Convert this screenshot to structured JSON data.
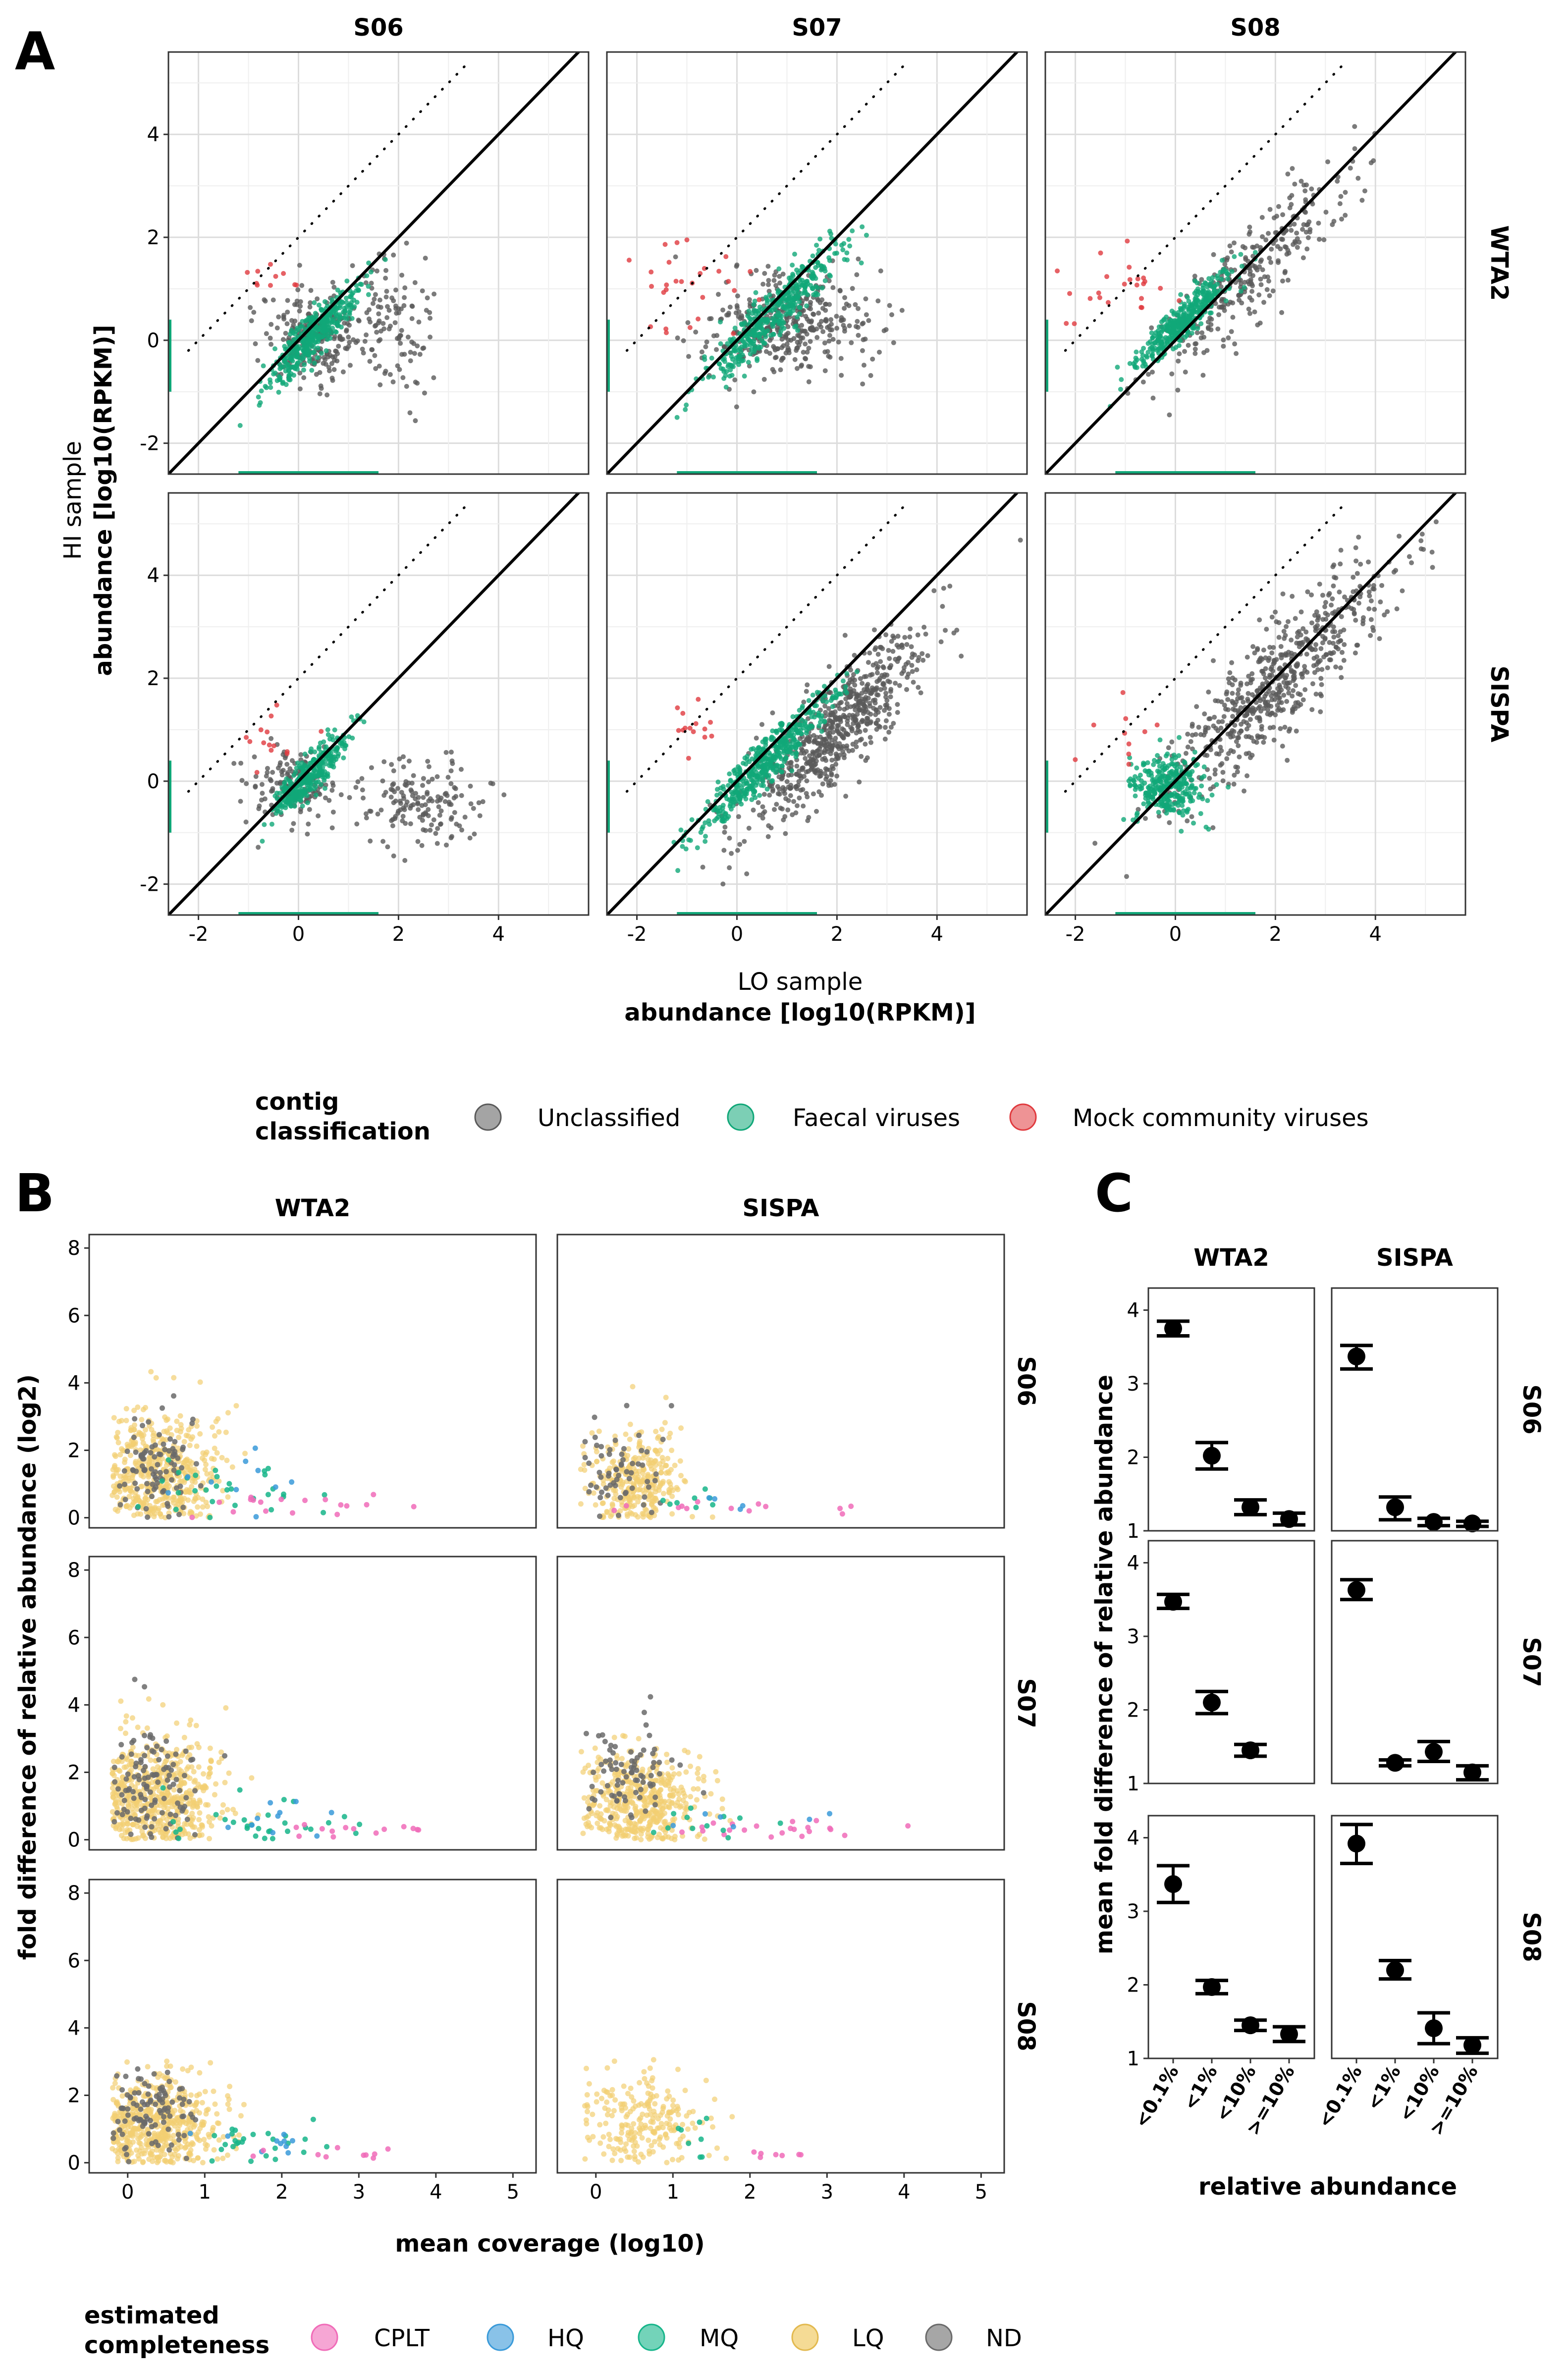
{
  "panelA": {
    "letter": "A",
    "columns": [
      "S06",
      "S07",
      "S08"
    ],
    "rows": [
      "WTA2",
      "SISPA"
    ],
    "xlabel_line1": "LO sample",
    "xlabel_line2": "abundance [log10(RPKM)]",
    "ylabel_line1": "HI sample",
    "ylabel_line2": "abundance [log10(RPKM)]",
    "xticks": [
      "-2",
      "0",
      "2",
      "4"
    ],
    "yticks": [
      "-2",
      "0",
      "2",
      "4"
    ],
    "legend": {
      "title_line1": "contig",
      "title_line2": "classification",
      "items": [
        {
          "label": "Unclassified",
          "color": "#5a5a5a"
        },
        {
          "label": "Faecal viruses",
          "color": "#10a778"
        },
        {
          "label": "Mock community viruses",
          "color": "#e03a3e"
        }
      ]
    }
  },
  "panelB": {
    "letter": "B",
    "columns": [
      "WTA2",
      "SISPA"
    ],
    "rows": [
      "S06",
      "S07",
      "S08"
    ],
    "xlabel": "mean coverage (log10)",
    "ylabel": "fold difference of relative abundance (log2)",
    "xticks": [
      "0",
      "1",
      "2",
      "3",
      "4",
      "5"
    ],
    "yticks": [
      "0",
      "2",
      "4",
      "6",
      "8"
    ],
    "legend": {
      "title_line1": "estimated",
      "title_line2": "completeness",
      "items": [
        {
          "label": "CPLT",
          "color": "#f06bb8"
        },
        {
          "label": "HQ",
          "color": "#3a9ad9"
        },
        {
          "label": "MQ",
          "color": "#16b58a"
        },
        {
          "label": "LQ",
          "color": "#f2cf72"
        },
        {
          "label": "ND",
          "color": "#6a6a6a"
        }
      ]
    }
  },
  "panelC": {
    "letter": "C",
    "columns": [
      "WTA2",
      "SISPA"
    ],
    "rows": [
      "S06",
      "S07",
      "S08"
    ],
    "xlabel": "relative abundance",
    "ylabel": "mean fold difference of relative abundance",
    "yticks": [
      "1",
      "2",
      "3",
      "4"
    ]
  },
  "chart_data": [
    {
      "type": "scatter",
      "panel": "A",
      "xlabel": "LO sample abundance [log10(RPKM)]",
      "ylabel": "HI sample abundance [log10(RPKM)]",
      "xlim": [
        -2.6,
        5.8
      ],
      "ylim": [
        -2.6,
        5.6
      ],
      "series": [
        "Unclassified",
        "Faecal viruses",
        "Mock community viruses"
      ],
      "reference_lines": [
        {
          "style": "solid",
          "intercept": 0,
          "slope": 1
        },
        {
          "style": "dotted",
          "intercept": 2,
          "slope": 1
        }
      ],
      "facets": [
        {
          "col": "S06",
          "row": "WTA2",
          "clouds": [
            {
              "series": "Unclassified",
              "cx": 0.3,
              "cy": 0.1,
              "sx": 0.5,
              "sy": 0.45,
              "n": 220
            },
            {
              "series": "Unclassified",
              "cx": 1.8,
              "cy": 0.3,
              "sx": 0.45,
              "sy": 0.7,
              "n": 120
            },
            {
              "series": "Faecal viruses",
              "cx": 0.3,
              "cy": 0.1,
              "sx": 0.45,
              "sy": 0.4,
              "n": 380,
              "diag": true
            },
            {
              "series": "Mock community viruses",
              "cx": -0.6,
              "cy": 1.2,
              "sx": 0.35,
              "sy": 0.15,
              "n": 10
            }
          ]
        },
        {
          "col": "S07",
          "row": "WTA2",
          "clouds": [
            {
              "series": "Unclassified",
              "cx": 1.0,
              "cy": 0.3,
              "sx": 0.8,
              "sy": 0.5,
              "n": 380
            },
            {
              "series": "Faecal viruses",
              "cx": 0.7,
              "cy": 0.5,
              "sx": 0.7,
              "sy": 0.45,
              "n": 420,
              "diag": true
            },
            {
              "series": "Mock community viruses",
              "cx": -1.0,
              "cy": 0.9,
              "sx": 0.5,
              "sy": 0.5,
              "n": 28
            }
          ]
        },
        {
          "col": "S08",
          "row": "WTA2",
          "clouds": [
            {
              "series": "Unclassified",
              "cx": 1.5,
              "cy": 1.3,
              "sx": 1.0,
              "sy": 0.9,
              "n": 300,
              "diag": true
            },
            {
              "series": "Faecal viruses",
              "cx": 0.2,
              "cy": 0.4,
              "sx": 0.5,
              "sy": 0.35,
              "n": 380,
              "diag": true
            },
            {
              "series": "Mock community viruses",
              "cx": -1.2,
              "cy": 1.0,
              "sx": 0.6,
              "sy": 0.5,
              "n": 24
            }
          ]
        },
        {
          "col": "S06",
          "row": "SISPA",
          "clouds": [
            {
              "series": "Unclassified",
              "cx": 2.4,
              "cy": -0.4,
              "sx": 0.7,
              "sy": 0.4,
              "n": 160
            },
            {
              "series": "Unclassified",
              "cx": 0.0,
              "cy": 0.0,
              "sx": 0.4,
              "sy": 0.4,
              "n": 140
            },
            {
              "series": "Faecal viruses",
              "cx": 0.2,
              "cy": 0.1,
              "sx": 0.4,
              "sy": 0.35,
              "n": 330,
              "diag": true
            },
            {
              "series": "Mock community viruses",
              "cx": -0.8,
              "cy": 0.8,
              "sx": 0.4,
              "sy": 0.35,
              "n": 14
            }
          ]
        },
        {
          "col": "S07",
          "row": "SISPA",
          "clouds": [
            {
              "series": "Unclassified",
              "cx": 2.0,
              "cy": 1.0,
              "sx": 0.9,
              "sy": 0.9,
              "n": 650,
              "diag": true
            },
            {
              "series": "Faecal viruses",
              "cx": 0.6,
              "cy": 0.4,
              "sx": 0.7,
              "sy": 0.4,
              "n": 480,
              "diag": true
            },
            {
              "series": "Mock community viruses",
              "cx": -0.8,
              "cy": 1.2,
              "sx": 0.35,
              "sy": 0.25,
              "n": 14
            }
          ]
        },
        {
          "col": "S08",
          "row": "SISPA",
          "clouds": [
            {
              "series": "Unclassified",
              "cx": 2.0,
              "cy": 1.9,
              "sx": 1.1,
              "sy": 1.0,
              "n": 600,
              "diag": true
            },
            {
              "series": "Faecal viruses",
              "cx": -0.1,
              "cy": -0.1,
              "sx": 0.35,
              "sy": 0.3,
              "n": 300
            },
            {
              "series": "Mock community viruses",
              "cx": -1.0,
              "cy": 0.9,
              "sx": 0.45,
              "sy": 0.4,
              "n": 10
            }
          ]
        }
      ]
    },
    {
      "type": "scatter",
      "panel": "B",
      "xlabel": "mean coverage (log10)",
      "ylabel": "fold difference of relative abundance (log2)",
      "xlim": [
        -0.5,
        5.3
      ],
      "ylim": [
        -0.3,
        8.4
      ],
      "series": [
        "CPLT",
        "HQ",
        "MQ",
        "LQ",
        "ND"
      ],
      "facets": [
        {
          "col": "WTA2",
          "row": "S06",
          "clouds": [
            {
              "series": "LQ",
              "cx": 0.4,
              "cy": 1.3,
              "sx": 0.4,
              "sy": 0.9,
              "n": 500
            },
            {
              "series": "ND",
              "cx": 0.3,
              "cy": 1.5,
              "sx": 0.3,
              "sy": 0.7,
              "n": 90
            },
            {
              "series": "MQ",
              "cx": 1.4,
              "cy": 0.8,
              "sx": 0.5,
              "sy": 0.5,
              "n": 30
            },
            {
              "series": "HQ",
              "cx": 1.5,
              "cy": 1.0,
              "sx": 0.4,
              "sy": 0.5,
              "n": 10
            },
            {
              "series": "CPLT",
              "cx": 2.4,
              "cy": 0.4,
              "sx": 0.7,
              "sy": 0.2,
              "n": 18
            }
          ]
        },
        {
          "col": "SISPA",
          "row": "S06",
          "clouds": [
            {
              "series": "LQ",
              "cx": 0.5,
              "cy": 1.0,
              "sx": 0.3,
              "sy": 0.8,
              "n": 320
            },
            {
              "series": "ND",
              "cx": 0.3,
              "cy": 1.5,
              "sx": 0.25,
              "sy": 0.7,
              "n": 60
            },
            {
              "series": "CPLT",
              "cx": 1.8,
              "cy": 0.3,
              "sx": 1.2,
              "sy": 0.1,
              "n": 14
            },
            {
              "series": "MQ",
              "cx": 1.3,
              "cy": 0.3,
              "sx": 0.3,
              "sy": 0.2,
              "n": 8
            },
            {
              "series": "HQ",
              "cx": 1.6,
              "cy": 0.4,
              "sx": 0.3,
              "sy": 0.2,
              "n": 4
            }
          ]
        },
        {
          "col": "WTA2",
          "row": "S07",
          "clouds": [
            {
              "series": "LQ",
              "cx": 0.4,
              "cy": 1.3,
              "sx": 0.4,
              "sy": 1.0,
              "n": 560
            },
            {
              "series": "ND",
              "cx": 0.3,
              "cy": 1.8,
              "sx": 0.3,
              "sy": 0.9,
              "n": 110
            },
            {
              "series": "MQ",
              "cx": 1.6,
              "cy": 0.5,
              "sx": 0.6,
              "sy": 0.4,
              "n": 30
            },
            {
              "series": "HQ",
              "cx": 1.8,
              "cy": 0.6,
              "sx": 0.5,
              "sy": 0.3,
              "n": 10
            },
            {
              "series": "CPLT",
              "cx": 2.9,
              "cy": 0.3,
              "sx": 0.5,
              "sy": 0.1,
              "n": 14
            }
          ]
        },
        {
          "col": "SISPA",
          "row": "S07",
          "clouds": [
            {
              "series": "LQ",
              "cx": 0.6,
              "cy": 1.1,
              "sx": 0.4,
              "sy": 0.8,
              "n": 480
            },
            {
              "series": "ND",
              "cx": 0.4,
              "cy": 1.8,
              "sx": 0.3,
              "sy": 0.8,
              "n": 80
            },
            {
              "series": "CPLT",
              "cx": 2.3,
              "cy": 0.3,
              "sx": 0.6,
              "sy": 0.1,
              "n": 22
            },
            {
              "series": "MQ",
              "cx": 1.4,
              "cy": 0.5,
              "sx": 0.5,
              "sy": 0.3,
              "n": 12
            },
            {
              "series": "HQ",
              "cx": 1.8,
              "cy": 0.5,
              "sx": 0.6,
              "sy": 0.3,
              "n": 6
            }
          ]
        },
        {
          "col": "WTA2",
          "row": "S08",
          "clouds": [
            {
              "series": "LQ",
              "cx": 0.4,
              "cy": 1.1,
              "sx": 0.4,
              "sy": 0.8,
              "n": 520
            },
            {
              "series": "ND",
              "cx": 0.3,
              "cy": 1.6,
              "sx": 0.3,
              "sy": 0.7,
              "n": 100
            },
            {
              "series": "MQ",
              "cx": 1.7,
              "cy": 0.6,
              "sx": 0.5,
              "sy": 0.3,
              "n": 26
            },
            {
              "series": "HQ",
              "cx": 1.9,
              "cy": 0.6,
              "sx": 0.5,
              "sy": 0.3,
              "n": 10
            },
            {
              "series": "CPLT",
              "cx": 2.9,
              "cy": 0.3,
              "sx": 0.6,
              "sy": 0.1,
              "n": 10
            }
          ]
        },
        {
          "col": "SISPA",
          "row": "S08",
          "clouds": [
            {
              "series": "LQ",
              "cx": 0.6,
              "cy": 1.2,
              "sx": 0.4,
              "sy": 0.8,
              "n": 220
            },
            {
              "series": "MQ",
              "cx": 1.3,
              "cy": 0.8,
              "sx": 0.2,
              "sy": 0.3,
              "n": 8
            },
            {
              "series": "CPLT",
              "cx": 2.3,
              "cy": 0.2,
              "sx": 0.3,
              "sy": 0.1,
              "n": 7
            }
          ]
        }
      ]
    },
    {
      "type": "errorbar",
      "panel": "C",
      "categories": [
        "<0.1%",
        "<1%",
        "<10%",
        ">=10%"
      ],
      "xlabel": "relative abundance",
      "ylabel": "mean fold difference of relative abundance",
      "ylim": [
        1,
        4.3
      ],
      "facets": [
        {
          "col": "WTA2",
          "row": "S06",
          "mean": [
            3.75,
            2.02,
            1.32,
            1.16
          ],
          "lo": [
            3.65,
            1.84,
            1.22,
            1.08
          ],
          "hi": [
            3.85,
            2.2,
            1.42,
            1.24
          ]
        },
        {
          "col": "SISPA",
          "row": "S06",
          "mean": [
            3.37,
            1.32,
            1.12,
            1.1
          ],
          "lo": [
            3.2,
            1.15,
            1.07,
            1.06
          ],
          "hi": [
            3.52,
            1.46,
            1.17,
            1.13
          ]
        },
        {
          "col": "WTA2",
          "row": "S07",
          "mean": [
            3.47,
            2.1,
            1.45,
            null
          ],
          "lo": [
            3.38,
            1.95,
            1.37,
            null
          ],
          "hi": [
            3.57,
            2.25,
            1.53,
            null
          ]
        },
        {
          "col": "SISPA",
          "row": "S07",
          "mean": [
            3.63,
            1.28,
            1.43,
            1.15
          ],
          "lo": [
            3.5,
            1.24,
            1.3,
            1.05
          ],
          "hi": [
            3.77,
            1.32,
            1.57,
            1.24
          ]
        },
        {
          "col": "WTA2",
          "row": "S08",
          "mean": [
            3.37,
            1.97,
            1.45,
            1.33
          ],
          "lo": [
            3.12,
            1.88,
            1.38,
            1.23
          ],
          "hi": [
            3.62,
            2.06,
            1.52,
            1.43
          ]
        },
        {
          "col": "SISPA",
          "row": "S08",
          "mean": [
            3.92,
            2.2,
            1.41,
            1.18
          ],
          "lo": [
            3.65,
            2.08,
            1.2,
            1.07
          ],
          "hi": [
            4.18,
            2.33,
            1.62,
            1.28
          ]
        }
      ]
    }
  ]
}
